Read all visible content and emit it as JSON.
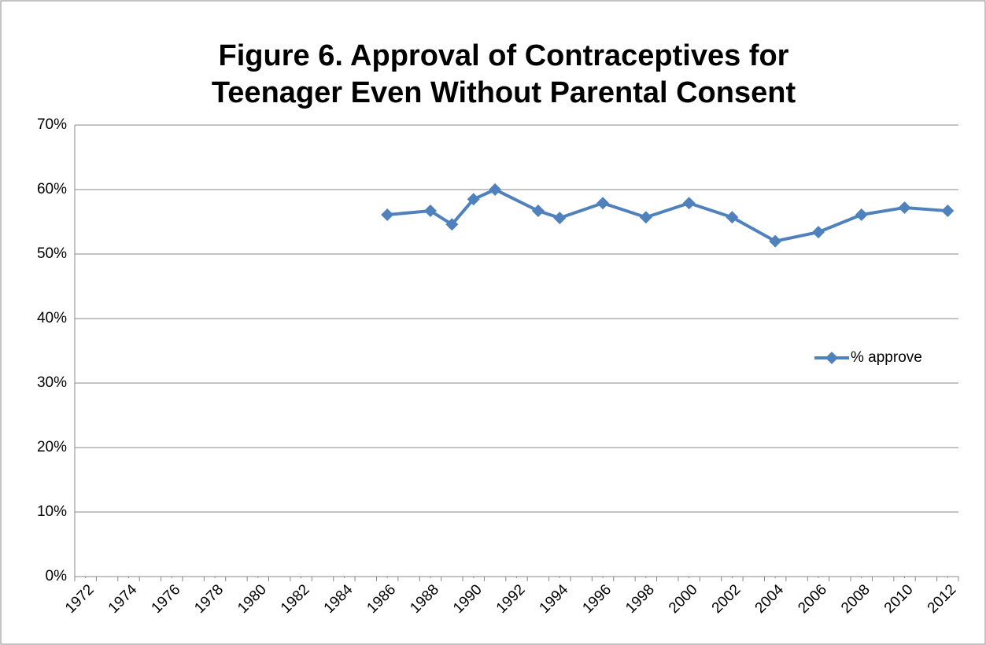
{
  "chart_data": {
    "type": "line",
    "title": [
      "Figure 6. Approval of Contraceptives for",
      "Teenager Even Without Parental Consent"
    ],
    "x": [
      1986,
      1988,
      1989,
      1990,
      1991,
      1993,
      1994,
      1996,
      1998,
      2000,
      2002,
      2004,
      2006,
      2008,
      2010,
      2012
    ],
    "series": [
      {
        "name": "% approve",
        "color": "#4f81bd",
        "values": [
          56.1,
          56.7,
          54.6,
          58.5,
          60.0,
          56.7,
          55.6,
          57.9,
          55.7,
          57.9,
          55.7,
          52.0,
          53.4,
          56.1,
          57.2,
          56.7
        ]
      }
    ],
    "xlim": [
      1971.5,
      2012.5
    ],
    "xticks": [
      1972,
      1974,
      1976,
      1978,
      1980,
      1982,
      1984,
      1986,
      1988,
      1990,
      1992,
      1994,
      1996,
      1998,
      2000,
      2002,
      2004,
      2006,
      2008,
      2010,
      2012
    ],
    "ylim": [
      0,
      70
    ],
    "yticks": [
      {
        "value": 0,
        "label": "0%"
      },
      {
        "value": 10,
        "label": "10%"
      },
      {
        "value": 20,
        "label": "20%"
      },
      {
        "value": 30,
        "label": "30%"
      },
      {
        "value": 40,
        "label": "40%"
      },
      {
        "value": 50,
        "label": "50%"
      },
      {
        "value": 60,
        "label": "60%"
      },
      {
        "value": 70,
        "label": "70%"
      }
    ],
    "grid": true,
    "legend": "right"
  }
}
